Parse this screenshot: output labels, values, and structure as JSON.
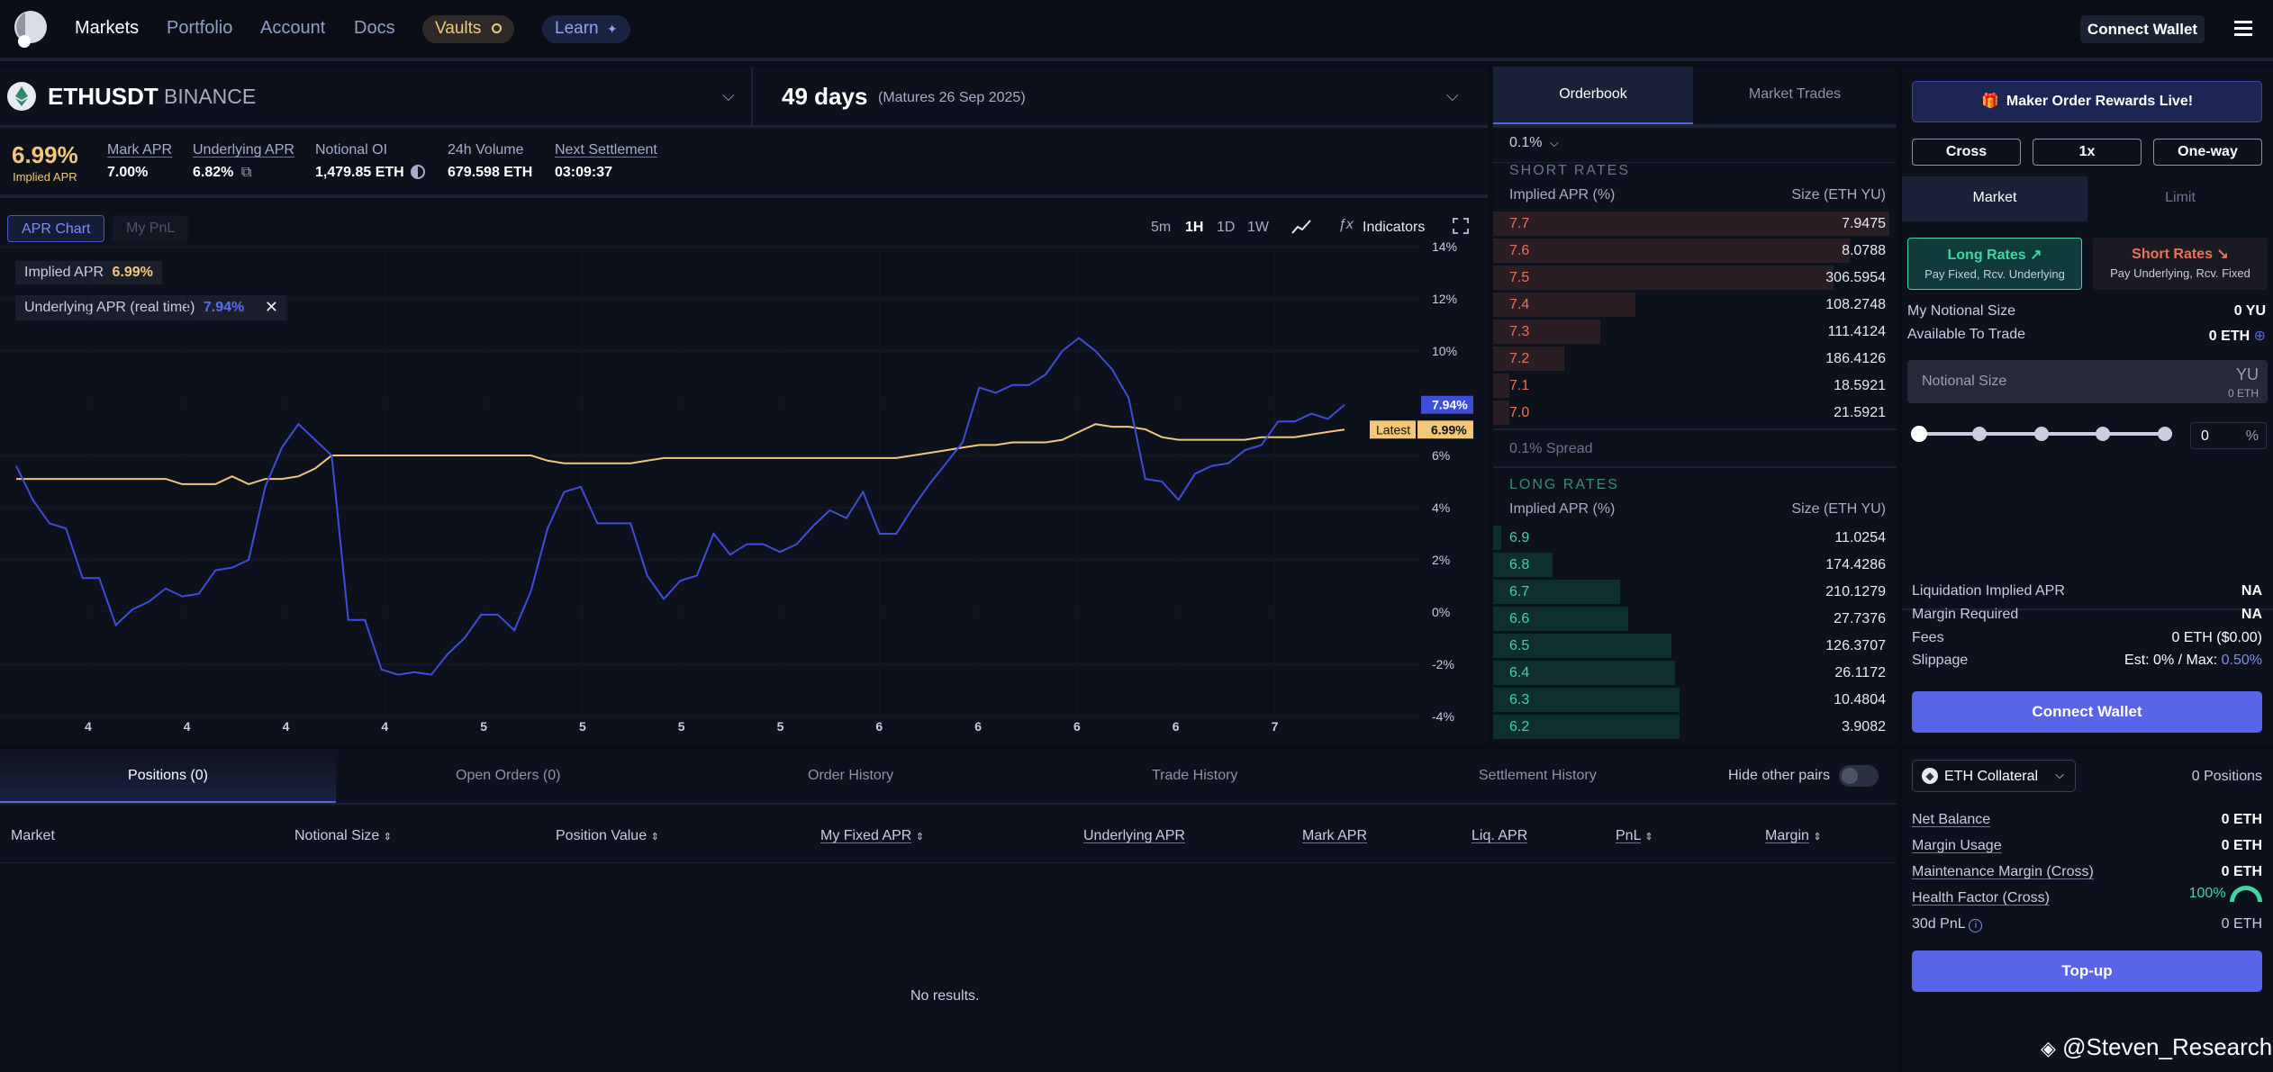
{
  "nav": {
    "links": [
      "Markets",
      "Portfolio",
      "Account",
      "Docs"
    ],
    "vaults": "Vaults",
    "learn": "Learn",
    "connect": "Connect Wallet"
  },
  "market": {
    "symbol": "ETHUSDT",
    "exchange": "BINANCE",
    "duration": "49 days",
    "maturity": "(Matures 26 Sep 2025)"
  },
  "stats": {
    "implied_value": "6.99%",
    "implied_label": "Implied APR",
    "mark_label": "Mark APR",
    "mark_value": "7.00%",
    "underlying_label": "Underlying APR",
    "underlying_value": "6.82%",
    "oi_label": "Notional OI",
    "oi_value": "1,479.85 ETH",
    "vol_label": "24h Volume",
    "vol_value": "679.598 ETH",
    "settle_label": "Next Settlement",
    "settle_value": "03:09:37"
  },
  "chart_controls": {
    "tab_apr": "APR Chart",
    "tab_pnl": "My PnL",
    "timeframes": [
      "5m",
      "1H",
      "1D",
      "1W"
    ],
    "indicators": "Indicators"
  },
  "legend": {
    "implied_label": "Implied APR",
    "implied_value": "6.99%",
    "underlying_label": "Underlying APR (real time)",
    "underlying_value": "7.94%",
    "latest": "Latest"
  },
  "chart_data": {
    "type": "line",
    "y_ticks": [
      "14%",
      "12%",
      "10%",
      "8%",
      "6%",
      "4%",
      "2%",
      "0%",
      "-2%",
      "-4%"
    ],
    "ylim": [
      -4,
      14
    ],
    "x_ticks": [
      "4",
      "4",
      "4",
      "4",
      "5",
      "5",
      "5",
      "5",
      "6",
      "6",
      "6",
      "6",
      "7"
    ],
    "series": [
      {
        "name": "Underlying APR (real time)",
        "color": "#3d4ed8",
        "values": [
          5.6,
          4.3,
          3.4,
          3.2,
          1.3,
          1.3,
          -0.5,
          0.1,
          0.4,
          0.9,
          0.6,
          0.7,
          1.6,
          1.7,
          2.0,
          4.8,
          6.3,
          7.2,
          6.6,
          6.0,
          -0.3,
          -0.3,
          -2.2,
          -2.4,
          -2.3,
          -2.4,
          -1.6,
          -1.0,
          -0.1,
          -0.1,
          -0.7,
          0.8,
          3.2,
          4.6,
          4.8,
          3.4,
          3.4,
          3.4,
          1.4,
          0.5,
          1.2,
          1.4,
          3.0,
          2.2,
          2.6,
          2.6,
          2.3,
          2.6,
          3.3,
          3.9,
          3.6,
          4.6,
          3.0,
          3.0,
          4.0,
          4.9,
          5.7,
          6.5,
          8.6,
          8.4,
          8.7,
          8.7,
          9.1,
          10.0,
          10.5,
          10.0,
          9.3,
          8.2,
          5.1,
          5.0,
          4.3,
          5.3,
          5.6,
          5.7,
          6.2,
          6.4,
          7.3,
          7.3,
          7.6,
          7.4,
          7.94
        ]
      },
      {
        "name": "Implied APR",
        "color": "#f2c777",
        "values": [
          5.1,
          5.1,
          5.1,
          5.1,
          5.1,
          5.1,
          5.1,
          5.1,
          5.1,
          5.1,
          4.9,
          4.9,
          4.9,
          5.2,
          4.9,
          5.1,
          5.1,
          5.2,
          5.5,
          6.0,
          6.0,
          6.0,
          6.0,
          6.0,
          6.0,
          6.0,
          6.0,
          6.0,
          6.0,
          6.0,
          6.0,
          6.0,
          5.8,
          5.7,
          5.7,
          5.7,
          5.7,
          5.7,
          5.8,
          5.9,
          5.9,
          5.9,
          5.9,
          5.9,
          5.9,
          5.9,
          5.9,
          5.9,
          5.9,
          5.9,
          5.9,
          5.9,
          5.9,
          5.9,
          6.0,
          6.1,
          6.2,
          6.3,
          6.4,
          6.4,
          6.5,
          6.5,
          6.5,
          6.6,
          6.9,
          7.2,
          7.1,
          7.1,
          7.0,
          6.7,
          6.6,
          6.6,
          6.6,
          6.6,
          6.6,
          6.7,
          6.7,
          6.7,
          6.8,
          6.9,
          6.99
        ]
      }
    ],
    "markers": {
      "underlying": "7.94%",
      "implied": "6.99%"
    }
  },
  "orderbook": {
    "tabs": [
      "Orderbook",
      "Market Trades"
    ],
    "tick": "0.1%",
    "short_title": "SHORT RATES",
    "long_title": "LONG RATES",
    "col_price": "Implied APR (%)",
    "col_size": "Size (ETH YU)",
    "short": [
      {
        "p": "7.7",
        "s": "7.9475",
        "w": 1.0
      },
      {
        "p": "7.6",
        "s": "8.0788",
        "w": 0.9
      },
      {
        "p": "7.5",
        "s": "306.5954",
        "w": 0.86
      },
      {
        "p": "7.4",
        "s": "108.2748",
        "w": 0.36
      },
      {
        "p": "7.3",
        "s": "111.4124",
        "w": 0.27
      },
      {
        "p": "7.2",
        "s": "186.4126",
        "w": 0.18
      },
      {
        "p": "7.1",
        "s": "18.5921",
        "w": 0.04
      },
      {
        "p": "7.0",
        "s": "21.5921",
        "w": 0.04
      }
    ],
    "spread": "0.1% Spread",
    "long": [
      {
        "p": "6.9",
        "s": "11.0254",
        "w": 0.02
      },
      {
        "p": "6.8",
        "s": "174.4286",
        "w": 0.15
      },
      {
        "p": "6.7",
        "s": "210.1279",
        "w": 0.32
      },
      {
        "p": "6.6",
        "s": "27.7376",
        "w": 0.34
      },
      {
        "p": "6.5",
        "s": "126.3707",
        "w": 0.45
      },
      {
        "p": "6.4",
        "s": "26.1172",
        "w": 0.46
      },
      {
        "p": "6.3",
        "s": "10.4804",
        "w": 0.47
      },
      {
        "p": "6.2",
        "s": "3.9082",
        "w": 0.47
      }
    ]
  },
  "trade": {
    "rewards": "Maker Order Rewards Live!",
    "margin_mode": "Cross",
    "leverage": "1x",
    "direction": "One-way",
    "tab_market": "Market",
    "tab_limit": "Limit",
    "long_title": "Long Rates",
    "long_sub": "Pay Fixed, Rcv. Underlying",
    "short_title": "Short Rates",
    "short_sub": "Pay Underlying, Rcv. Fixed",
    "notional_label": "My Notional Size",
    "notional_value": "0 YU",
    "avail_label": "Available To Trade",
    "avail_value": "0 ETH",
    "input_placeholder": "Notional Size",
    "input_unit": "YU",
    "input_sub": "0 ETH",
    "slider_value": "0",
    "slider_pct": "%",
    "slider_fraction": 0,
    "liq_label": "Liquidation Implied APR",
    "liq_value": "NA",
    "margin_label": "Margin Required",
    "margin_value": "NA",
    "fees_label": "Fees",
    "fees_value": "0 ETH ($0.00)",
    "slip_label": "Slippage",
    "slip_est": "Est: 0% / Max: ",
    "slip_max": "0.50%",
    "connect": "Connect Wallet"
  },
  "positions": {
    "tabs": [
      "Positions (0)",
      "Open Orders (0)",
      "Order History",
      "Trade History",
      "Settlement History"
    ],
    "hide_pairs": "Hide other pairs",
    "columns": [
      "Market",
      "Notional Size",
      "Position Value",
      "My Fixed APR",
      "Underlying APR",
      "Mark APR",
      "Liq. APR",
      "PnL",
      "Margin"
    ],
    "empty": "No results."
  },
  "account": {
    "collateral": "ETH Collateral",
    "positions_count": "0 Positions",
    "rows": [
      {
        "label": "Net Balance",
        "value": "0 ETH"
      },
      {
        "label": "Margin Usage",
        "value": "0 ETH"
      },
      {
        "label": "Maintenance Margin (Cross)",
        "value": "0 ETH"
      },
      {
        "label": "Health Factor (Cross)",
        "value": "100%"
      },
      {
        "label": "30d PnL",
        "value": "0 ETH"
      }
    ],
    "topup": "Top-up"
  },
  "watermark": "@Steven_Research",
  "colors": {
    "accent": "#5865e8",
    "green": "#3fd6a2",
    "red": "#e8745a",
    "gold": "#f2c777"
  }
}
